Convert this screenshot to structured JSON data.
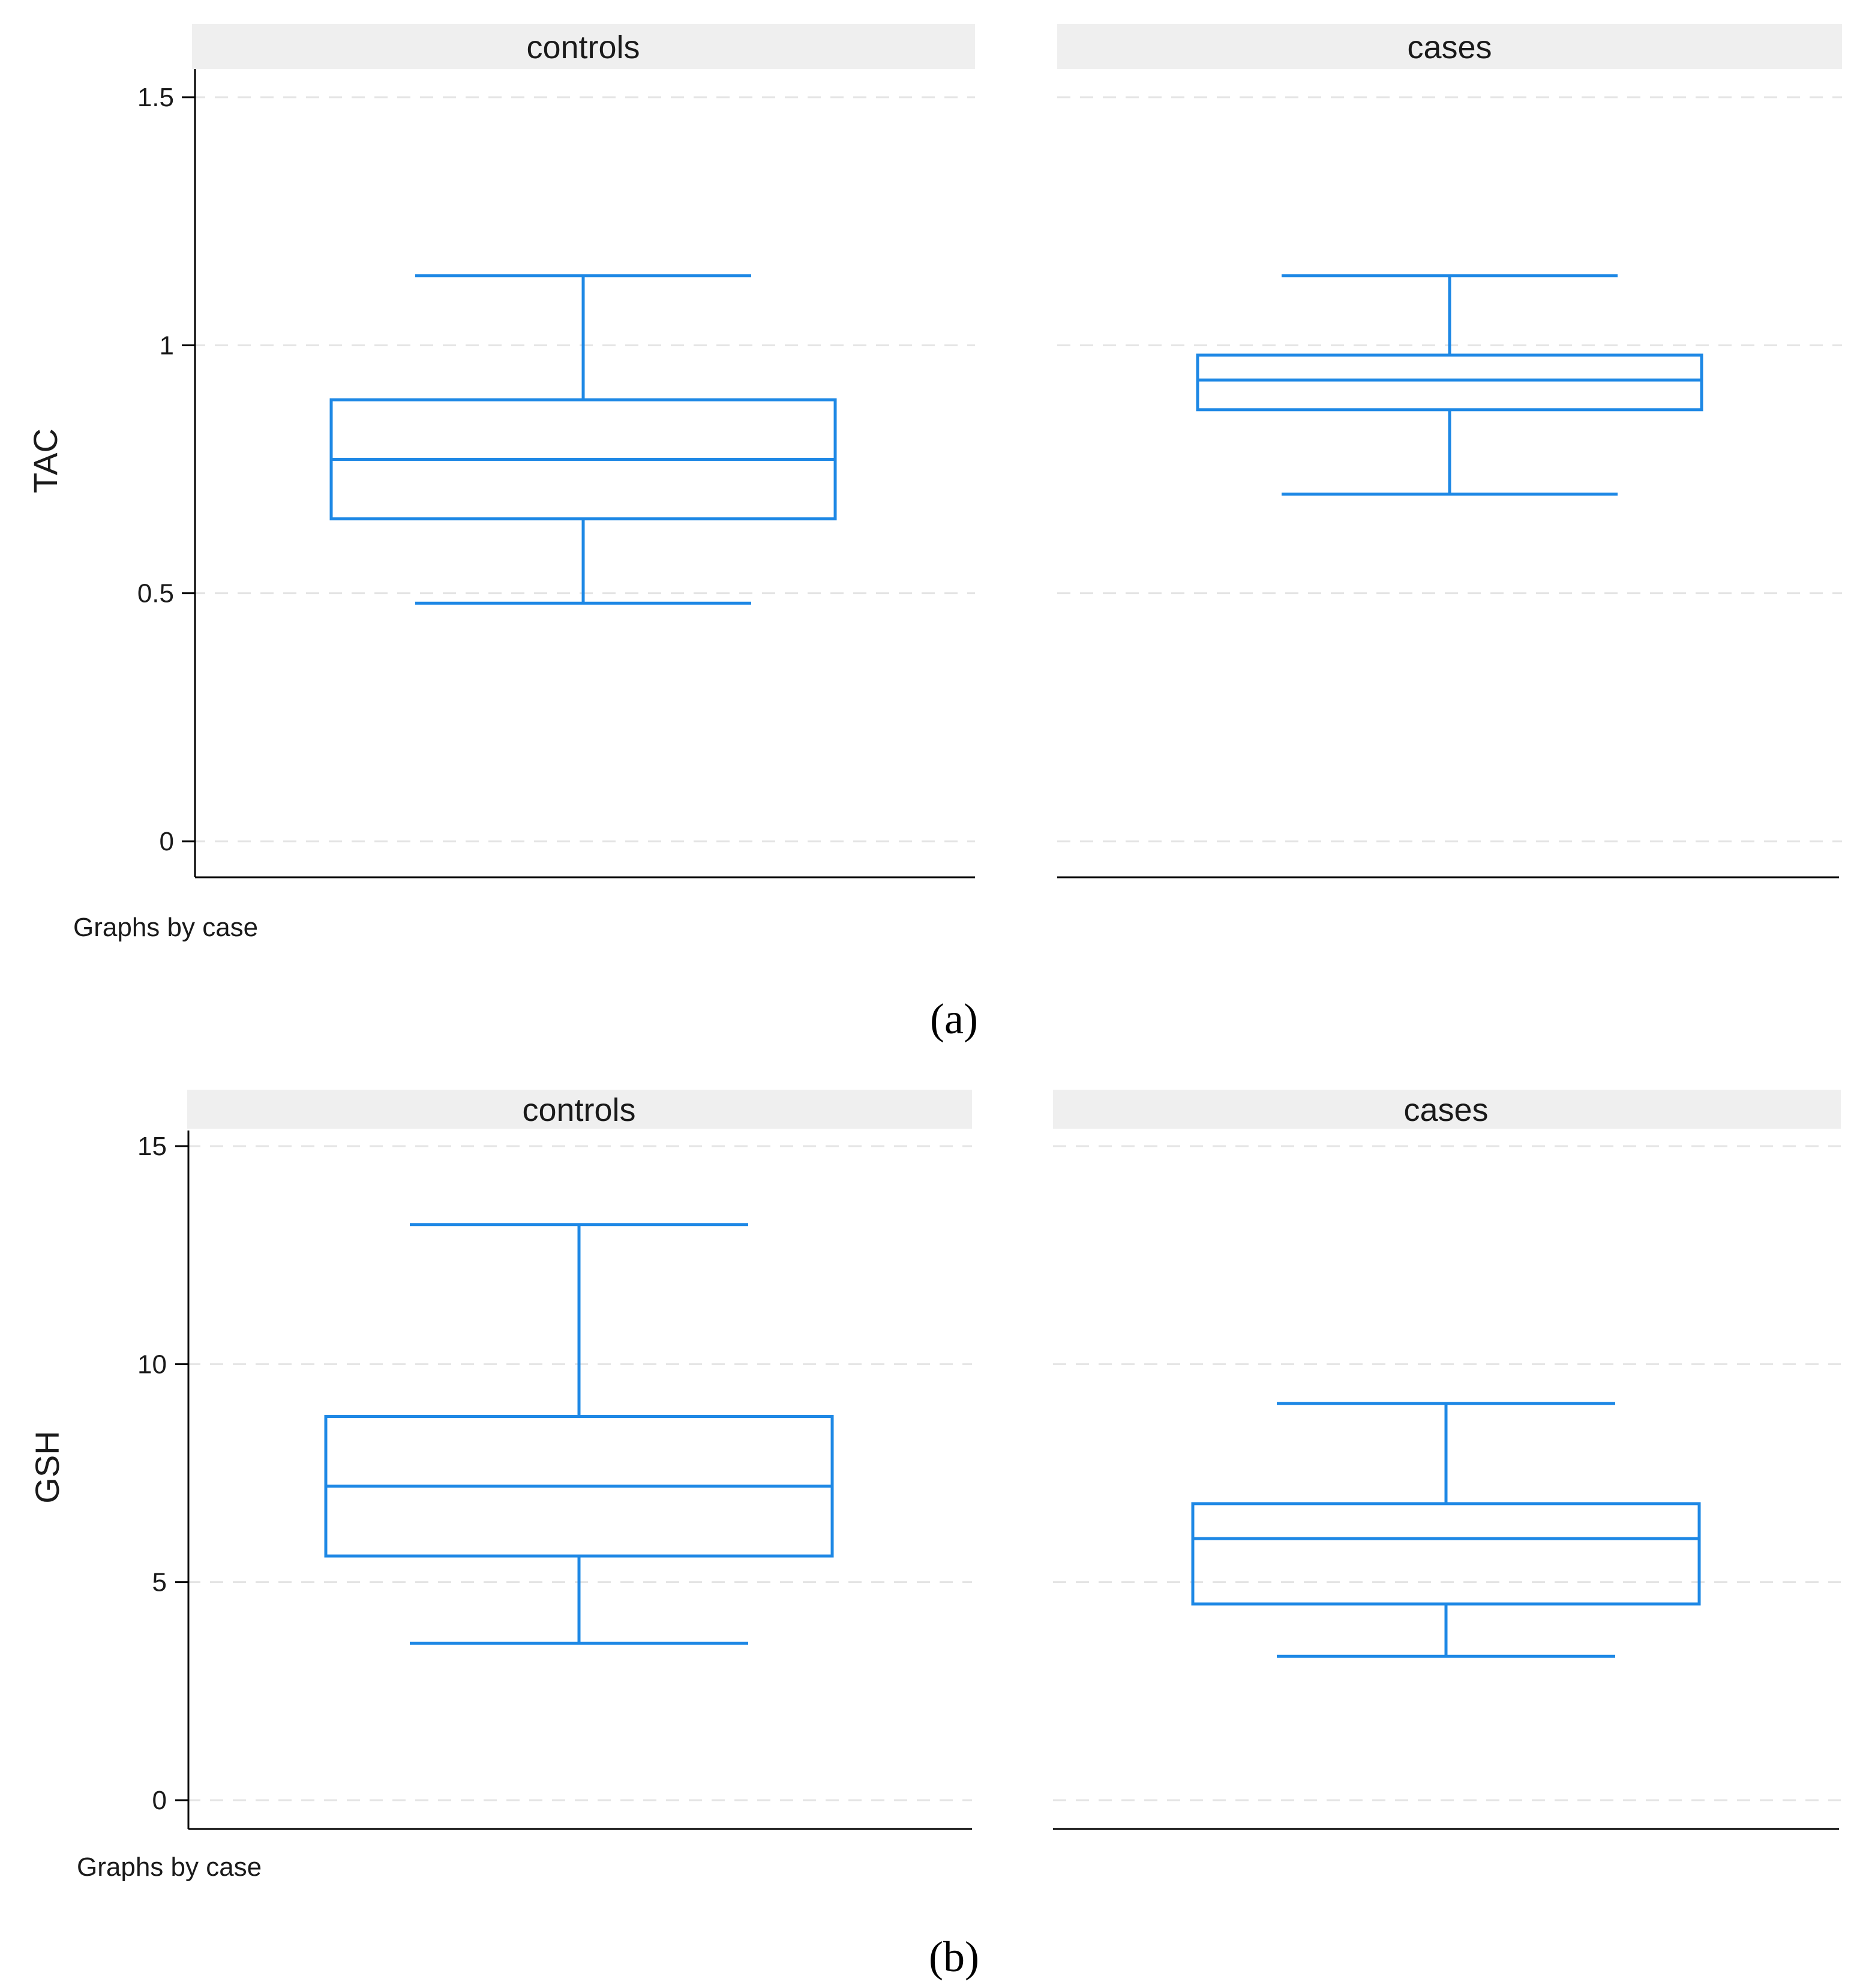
{
  "colors": {
    "box": "#1e88e5",
    "strip_bg": "#efefef",
    "grid": "#e4e4e4",
    "axis": "#000000"
  },
  "chart_data": [
    {
      "type": "box",
      "panel_label": "(a)",
      "ylabel": "TAC",
      "note": "Graphs by case",
      "ylim": [
        0,
        1.5
      ],
      "yticks": [
        0,
        0.5,
        1,
        1.5
      ],
      "ytick_labels": [
        "0",
        "0.5",
        "1",
        "1.5"
      ],
      "grid": true,
      "groups": [
        {
          "name": "controls",
          "whisker_low": 0.48,
          "q1": 0.65,
          "median": 0.77,
          "q3": 0.89,
          "whisker_high": 1.14
        },
        {
          "name": "cases",
          "whisker_low": 0.7,
          "q1": 0.87,
          "median": 0.93,
          "q3": 0.98,
          "whisker_high": 1.14
        }
      ]
    },
    {
      "type": "box",
      "panel_label": "(b)",
      "ylabel": "GSH",
      "note": "Graphs by case",
      "ylim": [
        0,
        15
      ],
      "yticks": [
        0,
        5,
        10,
        15
      ],
      "ytick_labels": [
        "0",
        "5",
        "10",
        "15"
      ],
      "grid": true,
      "groups": [
        {
          "name": "controls",
          "whisker_low": 3.6,
          "q1": 5.6,
          "median": 7.2,
          "q3": 8.8,
          "whisker_high": 13.2
        },
        {
          "name": "cases",
          "whisker_low": 3.3,
          "q1": 4.5,
          "median": 6.0,
          "q3": 6.8,
          "whisker_high": 9.1
        }
      ]
    }
  ]
}
